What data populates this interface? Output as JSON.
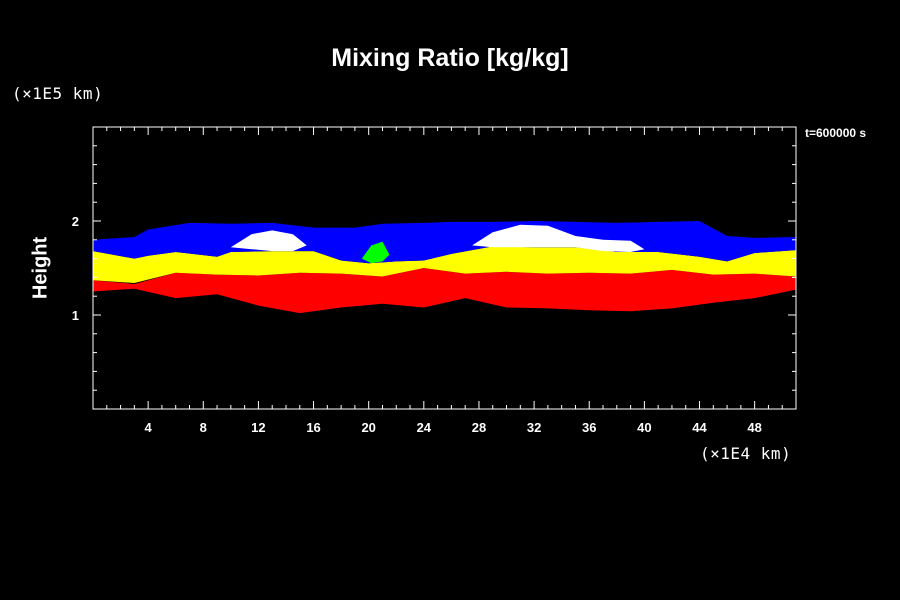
{
  "chart_data": {
    "type": "area",
    "title": "Mixing Ratio [kg/kg]",
    "xlabel": "",
    "ylabel": "Height",
    "x_unit": "(×1E4 km)",
    "y_unit": "(×1E5 km)",
    "time_label": "t=600000 s",
    "xlim": [
      0,
      51
    ],
    "ylim": [
      0,
      3
    ],
    "x_ticks": [
      4,
      8,
      12,
      16,
      20,
      24,
      28,
      32,
      36,
      40,
      44,
      48
    ],
    "y_ticks": [
      1,
      2
    ],
    "colors": {
      "background": "#000000",
      "layer_1": "#ff0000",
      "layer_2": "#ffff00",
      "layer_3": "#0000ff",
      "layer_4": "#ffffff",
      "layer_5": "#00ff00"
    },
    "layers": [
      {
        "color": "#ff0000",
        "top": [
          [
            0,
            1.37
          ],
          [
            3,
            1.33
          ],
          [
            6,
            1.45
          ],
          [
            9,
            1.43
          ],
          [
            12,
            1.42
          ],
          [
            15,
            1.45
          ],
          [
            18,
            1.44
          ],
          [
            21,
            1.41
          ],
          [
            24,
            1.5
          ],
          [
            27,
            1.44
          ],
          [
            30,
            1.46
          ],
          [
            33,
            1.44
          ],
          [
            36,
            1.45
          ],
          [
            39,
            1.44
          ],
          [
            42,
            1.48
          ],
          [
            45,
            1.43
          ],
          [
            48,
            1.44
          ],
          [
            51,
            1.41
          ]
        ],
        "bottom": [
          [
            0,
            1.25
          ],
          [
            3,
            1.28
          ],
          [
            6,
            1.18
          ],
          [
            9,
            1.22
          ],
          [
            12,
            1.1
          ],
          [
            15,
            1.02
          ],
          [
            18,
            1.08
          ],
          [
            21,
            1.12
          ],
          [
            24,
            1.08
          ],
          [
            27,
            1.18
          ],
          [
            30,
            1.08
          ],
          [
            33,
            1.07
          ],
          [
            36,
            1.05
          ],
          [
            39,
            1.04
          ],
          [
            42,
            1.07
          ],
          [
            45,
            1.13
          ],
          [
            48,
            1.18
          ],
          [
            51,
            1.27
          ]
        ]
      },
      {
        "color": "#ffff00",
        "top": [
          [
            0,
            1.68
          ],
          [
            3,
            1.6
          ],
          [
            4,
            1.63
          ],
          [
            6,
            1.67
          ],
          [
            9,
            1.62
          ],
          [
            10,
            1.67
          ],
          [
            13,
            1.68
          ],
          [
            16,
            1.68
          ],
          [
            18,
            1.58
          ],
          [
            20,
            1.55
          ],
          [
            22,
            1.57
          ],
          [
            24,
            1.58
          ],
          [
            26,
            1.65
          ],
          [
            29,
            1.73
          ],
          [
            32,
            1.72
          ],
          [
            35,
            1.72
          ],
          [
            38,
            1.67
          ],
          [
            41,
            1.67
          ],
          [
            44,
            1.62
          ],
          [
            46,
            1.57
          ],
          [
            48,
            1.66
          ],
          [
            51,
            1.69
          ]
        ],
        "bottom": [
          [
            0,
            1.37
          ],
          [
            3,
            1.34
          ],
          [
            6,
            1.45
          ],
          [
            9,
            1.43
          ],
          [
            12,
            1.42
          ],
          [
            15,
            1.45
          ],
          [
            18,
            1.44
          ],
          [
            21,
            1.41
          ],
          [
            24,
            1.5
          ],
          [
            27,
            1.44
          ],
          [
            30,
            1.46
          ],
          [
            33,
            1.44
          ],
          [
            36,
            1.45
          ],
          [
            39,
            1.44
          ],
          [
            42,
            1.48
          ],
          [
            45,
            1.43
          ],
          [
            48,
            1.44
          ],
          [
            51,
            1.41
          ]
        ]
      },
      {
        "color": "#0000ff",
        "top": [
          [
            0,
            1.8
          ],
          [
            3,
            1.83
          ],
          [
            4,
            1.91
          ],
          [
            7,
            1.98
          ],
          [
            10,
            1.97
          ],
          [
            13,
            1.98
          ],
          [
            16,
            1.93
          ],
          [
            19,
            1.93
          ],
          [
            21,
            1.97
          ],
          [
            24,
            1.98
          ],
          [
            26,
            1.99
          ],
          [
            29,
            1.99
          ],
          [
            32,
            2.0
          ],
          [
            35,
            1.99
          ],
          [
            38,
            1.98
          ],
          [
            41,
            1.99
          ],
          [
            44,
            2.0
          ],
          [
            46,
            1.84
          ],
          [
            48,
            1.82
          ],
          [
            51,
            1.83
          ]
        ],
        "bottom": [
          [
            0,
            1.68
          ],
          [
            3,
            1.6
          ],
          [
            4,
            1.63
          ],
          [
            6,
            1.67
          ],
          [
            9,
            1.62
          ],
          [
            10,
            1.67
          ],
          [
            13,
            1.68
          ],
          [
            16,
            1.68
          ],
          [
            18,
            1.58
          ],
          [
            20,
            1.55
          ],
          [
            22,
            1.57
          ],
          [
            24,
            1.58
          ],
          [
            26,
            1.65
          ],
          [
            29,
            1.73
          ],
          [
            32,
            1.72
          ],
          [
            35,
            1.72
          ],
          [
            38,
            1.67
          ],
          [
            41,
            1.67
          ],
          [
            44,
            1.62
          ],
          [
            46,
            1.57
          ],
          [
            48,
            1.66
          ],
          [
            51,
            1.69
          ]
        ]
      },
      {
        "color": "#ffffff",
        "top": [
          [
            10,
            1.72
          ],
          [
            11.5,
            1.86
          ],
          [
            13,
            1.9
          ],
          [
            14.5,
            1.86
          ],
          [
            15.5,
            1.74
          ],
          [
            27.5,
            1.74
          ],
          [
            29,
            1.88
          ],
          [
            31,
            1.96
          ],
          [
            33,
            1.95
          ],
          [
            35,
            1.84
          ],
          [
            37,
            1.8
          ],
          [
            39,
            1.79
          ],
          [
            40,
            1.7
          ]
        ],
        "bottom": [
          [
            10,
            1.72
          ],
          [
            11.5,
            1.7
          ],
          [
            13,
            1.68
          ],
          [
            14.5,
            1.68
          ],
          [
            15.5,
            1.74
          ],
          [
            27.5,
            1.74
          ],
          [
            29,
            1.72
          ],
          [
            31,
            1.72
          ],
          [
            33,
            1.72
          ],
          [
            35,
            1.72
          ],
          [
            37,
            1.68
          ],
          [
            39,
            1.67
          ],
          [
            40,
            1.7
          ]
        ]
      },
      {
        "color": "#00ff00",
        "top": [
          [
            19.5,
            1.6
          ],
          [
            20.2,
            1.74
          ],
          [
            21,
            1.78
          ],
          [
            21.5,
            1.64
          ]
        ],
        "bottom": [
          [
            19.5,
            1.6
          ],
          [
            20.2,
            1.55
          ],
          [
            21,
            1.57
          ],
          [
            21.5,
            1.64
          ]
        ]
      }
    ]
  }
}
